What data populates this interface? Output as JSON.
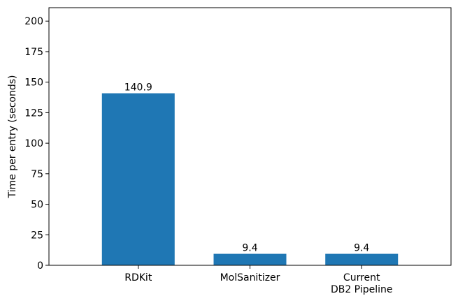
{
  "chart_data": {
    "type": "bar",
    "categories": [
      [
        "RDKit"
      ],
      [
        "MolSanitizer"
      ],
      [
        "Current",
        "DB2 Pipeline"
      ]
    ],
    "values": [
      140.9,
      9.4,
      9.4
    ],
    "value_labels": [
      "140.9",
      "9.4",
      "9.4"
    ],
    "ylabel": "Time per entry (seconds)",
    "xlabel": "",
    "title": "",
    "ylim": [
      0,
      211
    ],
    "yticks": [
      0,
      25,
      50,
      75,
      100,
      125,
      150,
      175,
      200
    ],
    "grid": false,
    "bar_color": "#1f77b4"
  }
}
